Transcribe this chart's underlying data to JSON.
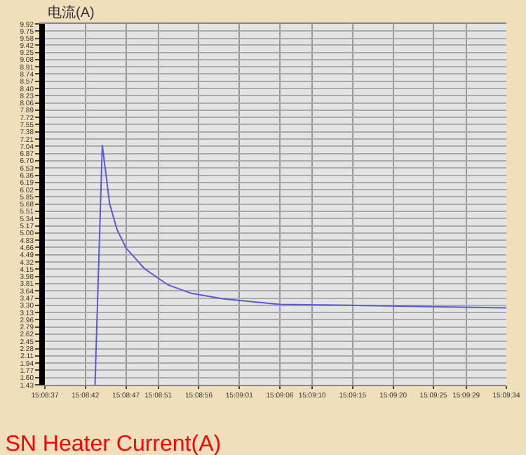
{
  "chart_data": {
    "type": "line",
    "title": "SN Heater Current(A)",
    "ylabel": "电流(A)",
    "x": [
      15.14533,
      15.14558,
      15.14583,
      15.14608,
      15.14639,
      15.14703,
      15.14783,
      15.14864,
      15.14975,
      15.15167,
      15.15408,
      15.15647,
      15.15944
    ],
    "series": [
      {
        "color": "#5a5ad2",
        "values": [
          1.43,
          7.07,
          5.69,
          5.09,
          4.65,
          4.16,
          3.78,
          3.58,
          3.45,
          3.32,
          3.3,
          3.27,
          3.24
        ]
      }
    ],
    "xlim": [
      15.14361,
      15.15944
    ],
    "xticks": [
      {
        "value": 15.14361,
        "label": "15:08:37"
      },
      {
        "value": 15.145,
        "label": "15:08:42"
      },
      {
        "value": 15.14639,
        "label": "15:08:47"
      },
      {
        "value": 15.1475,
        "label": "15:08:51"
      },
      {
        "value": 15.14889,
        "label": "15:08:56"
      },
      {
        "value": 15.15028,
        "label": "15:09:01"
      },
      {
        "value": 15.15167,
        "label": "15:09:06"
      },
      {
        "value": 15.15278,
        "label": "15:09:10"
      },
      {
        "value": 15.15417,
        "label": "15:09:15"
      },
      {
        "value": 15.15556,
        "label": "15:09:20"
      },
      {
        "value": 15.15694,
        "label": "15:09:25"
      },
      {
        "value": 15.15806,
        "label": "15:09:29"
      },
      {
        "value": 15.15944,
        "label": "15:09:34"
      }
    ],
    "ylim": [
      1.43,
      9.92
    ],
    "yticks": [
      {
        "value": 9.92,
        "label": "9.92"
      },
      {
        "value": 9.75,
        "label": "9.75"
      },
      {
        "value": 9.58,
        "label": "9.58"
      },
      {
        "value": 9.42,
        "label": "9.42"
      },
      {
        "value": 9.25,
        "label": "9.25"
      },
      {
        "value": 9.08,
        "label": "9.08"
      },
      {
        "value": 8.91,
        "label": "8.91"
      },
      {
        "value": 8.74,
        "label": "8.74"
      },
      {
        "value": 8.57,
        "label": "8.57"
      },
      {
        "value": 8.4,
        "label": "8.40"
      },
      {
        "value": 8.23,
        "label": "8.23"
      },
      {
        "value": 8.06,
        "label": "8.06"
      },
      {
        "value": 7.89,
        "label": "7.89"
      },
      {
        "value": 7.72,
        "label": "7.72"
      },
      {
        "value": 7.55,
        "label": "7.55"
      },
      {
        "value": 7.38,
        "label": "7.38"
      },
      {
        "value": 7.21,
        "label": "7.21"
      },
      {
        "value": 7.04,
        "label": "7.04"
      },
      {
        "value": 6.87,
        "label": "6.87"
      },
      {
        "value": 6.7,
        "label": "6.70"
      },
      {
        "value": 6.53,
        "label": "6.53"
      },
      {
        "value": 6.36,
        "label": "6.36"
      },
      {
        "value": 6.19,
        "label": "6.19"
      },
      {
        "value": 6.02,
        "label": "6.02"
      },
      {
        "value": 5.85,
        "label": "5.85"
      },
      {
        "value": 5.68,
        "label": "5.68"
      },
      {
        "value": 5.51,
        "label": "5.51"
      },
      {
        "value": 5.34,
        "label": "5.34"
      },
      {
        "value": 5.17,
        "label": "5.17"
      },
      {
        "value": 5.0,
        "label": "5.00"
      },
      {
        "value": 4.83,
        "label": "4.83"
      },
      {
        "value": 4.66,
        "label": "4.66"
      },
      {
        "value": 4.49,
        "label": "4.49"
      },
      {
        "value": 4.32,
        "label": "4.32"
      },
      {
        "value": 4.15,
        "label": "4.15"
      },
      {
        "value": 3.98,
        "label": "3.98"
      },
      {
        "value": 3.81,
        "label": "3.81"
      },
      {
        "value": 3.64,
        "label": "3.64"
      },
      {
        "value": 3.47,
        "label": "3.47"
      },
      {
        "value": 3.3,
        "label": "3.30"
      },
      {
        "value": 3.13,
        "label": "3.13"
      },
      {
        "value": 2.96,
        "label": "2.96"
      },
      {
        "value": 2.79,
        "label": "2.79"
      },
      {
        "value": 2.62,
        "label": "2.62"
      },
      {
        "value": 2.45,
        "label": "2.45"
      },
      {
        "value": 2.28,
        "label": "2.28"
      },
      {
        "value": 2.11,
        "label": "2.11"
      },
      {
        "value": 1.94,
        "label": "1.94"
      },
      {
        "value": 1.77,
        "label": "1.77"
      },
      {
        "value": 1.6,
        "label": "1.60"
      },
      {
        "value": 1.43,
        "label": "1.43"
      }
    ],
    "grid": true,
    "legend": false,
    "marker": "none",
    "line_style": "solid"
  }
}
